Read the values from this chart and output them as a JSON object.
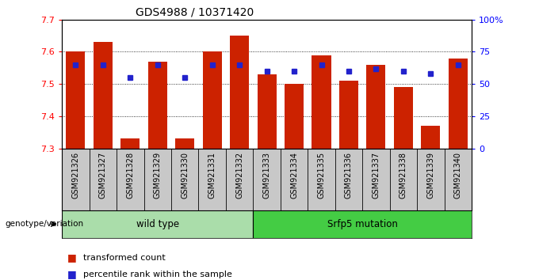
{
  "title": "GDS4988 / 10371420",
  "samples": [
    "GSM921326",
    "GSM921327",
    "GSM921328",
    "GSM921329",
    "GSM921330",
    "GSM921331",
    "GSM921332",
    "GSM921333",
    "GSM921334",
    "GSM921335",
    "GSM921336",
    "GSM921337",
    "GSM921338",
    "GSM921339",
    "GSM921340"
  ],
  "bar_values": [
    7.6,
    7.63,
    7.33,
    7.57,
    7.33,
    7.6,
    7.65,
    7.53,
    7.5,
    7.59,
    7.51,
    7.56,
    7.49,
    7.37,
    7.58
  ],
  "percentile_values": [
    65,
    65,
    55,
    65,
    55,
    65,
    65,
    60,
    60,
    65,
    60,
    62,
    60,
    58,
    65
  ],
  "ylim_left": [
    7.3,
    7.7
  ],
  "ylim_right": [
    0,
    100
  ],
  "bar_color": "#cc2200",
  "percentile_color": "#2222cc",
  "grid_ticks_left": [
    7.3,
    7.4,
    7.5,
    7.6,
    7.7
  ],
  "grid_ticks_right": [
    0,
    25,
    50,
    75,
    100
  ],
  "wt_color": "#aaddaa",
  "mut_color": "#44cc44",
  "wt_label": "wild type",
  "mut_label": "Srfp5 mutation",
  "wt_range": [
    0,
    6
  ],
  "mut_range": [
    7,
    14
  ],
  "genotype_label": "genotype/variation",
  "legend_entries": [
    "transformed count",
    "percentile rank within the sample"
  ],
  "bar_color_legend": "#cc2200",
  "tick_bg": "#c8c8c8",
  "title_fontsize": 10,
  "axis_fontsize": 8,
  "tick_fontsize": 7
}
